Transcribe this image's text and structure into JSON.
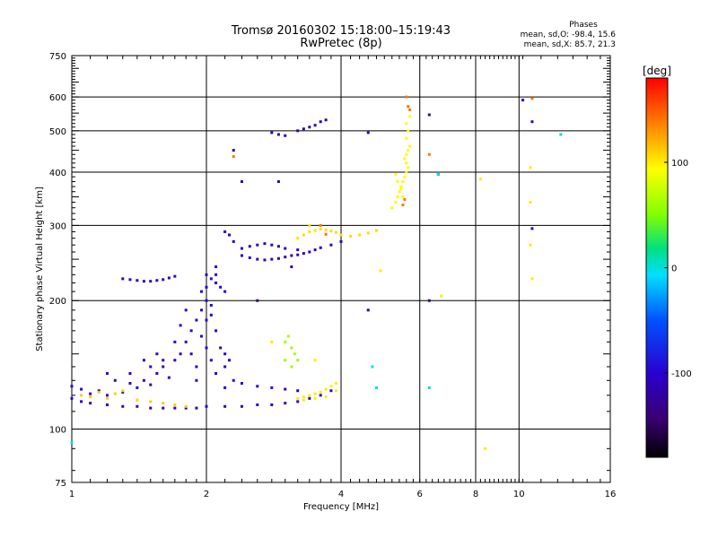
{
  "header": {
    "title": "Tromsø 20160302 15:18:00–15:19:43",
    "subtitle": "RwPretec (8p)"
  },
  "phase_info": {
    "title": "Phases",
    "line1": "mean, sd,O: -98.4, 15.6",
    "line2": "mean, sd,X:  85.7, 21.3"
  },
  "chart_data": {
    "type": "scatter",
    "title": "Tromsø 20160302 15:18:00–15:19:43",
    "subtitle": "RwPretec (8p)",
    "xlabel": "Frequency [MHz]",
    "ylabel": "Stationary phase Virtual Height [km]",
    "x_scale": "log",
    "y_scale": "log",
    "xlim": [
      1,
      16
    ],
    "ylim": [
      75,
      750
    ],
    "x_ticks": [
      1,
      2,
      4,
      6,
      8,
      10,
      16
    ],
    "y_ticks": [
      75,
      100,
      200,
      300,
      400,
      500,
      600,
      750
    ],
    "grid": true,
    "colorbar": {
      "label": "[deg]",
      "range": [
        -180,
        180
      ],
      "ticks": [
        100,
        0,
        -100
      ]
    },
    "series": [
      {
        "phase": -110,
        "points": [
          [
            1.0,
            118
          ],
          [
            1.05,
            116
          ],
          [
            1.1,
            115
          ],
          [
            1.2,
            114
          ],
          [
            1.3,
            113
          ],
          [
            1.4,
            113
          ],
          [
            1.5,
            112
          ],
          [
            1.6,
            112
          ],
          [
            1.7,
            112
          ],
          [
            1.8,
            112
          ],
          [
            1.9,
            112
          ],
          [
            2.0,
            113
          ],
          [
            2.2,
            113
          ],
          [
            2.4,
            113
          ],
          [
            2.6,
            114
          ],
          [
            2.8,
            114
          ],
          [
            3.0,
            115
          ],
          [
            3.2,
            116
          ],
          [
            3.4,
            118
          ],
          [
            3.6,
            120
          ],
          [
            3.8,
            123
          ]
        ]
      },
      {
        "phase": -100,
        "points": [
          [
            1.0,
            126
          ],
          [
            1.05,
            124
          ],
          [
            1.1,
            121
          ],
          [
            1.15,
            123
          ],
          [
            1.2,
            120
          ],
          [
            1.3,
            122
          ],
          [
            1.35,
            128
          ],
          [
            1.4,
            125
          ],
          [
            1.45,
            130
          ],
          [
            1.5,
            127
          ],
          [
            1.55,
            135
          ],
          [
            1.6,
            140
          ],
          [
            1.65,
            132
          ],
          [
            1.7,
            145
          ],
          [
            1.75,
            150
          ],
          [
            1.8,
            160
          ],
          [
            1.85,
            170
          ],
          [
            1.9,
            180
          ],
          [
            1.95,
            190
          ],
          [
            2.0,
            200
          ],
          [
            2.05,
            185
          ],
          [
            2.1,
            170
          ],
          [
            2.15,
            155
          ],
          [
            2.2,
            140
          ],
          [
            2.3,
            130
          ],
          [
            2.4,
            128
          ],
          [
            2.6,
            126
          ],
          [
            2.8,
            125
          ],
          [
            3.0,
            124
          ],
          [
            3.2,
            123
          ]
        ]
      },
      {
        "phase": -105,
        "points": [
          [
            1.7,
            160
          ],
          [
            1.75,
            175
          ],
          [
            1.8,
            190
          ],
          [
            1.85,
            150
          ],
          [
            1.9,
            140
          ],
          [
            1.95,
            165
          ],
          [
            2.0,
            155
          ],
          [
            2.05,
            145
          ],
          [
            2.1,
            135
          ],
          [
            2.0,
            180
          ],
          [
            1.95,
            210
          ],
          [
            2.05,
            195
          ],
          [
            2.1,
            220
          ],
          [
            2.0,
            230
          ],
          [
            2.1,
            240
          ],
          [
            2.2,
            150
          ],
          [
            2.25,
            145
          ],
          [
            1.6,
            145
          ],
          [
            1.55,
            150
          ],
          [
            1.5,
            140
          ],
          [
            1.45,
            145
          ],
          [
            1.35,
            135
          ],
          [
            1.25,
            130
          ],
          [
            1.2,
            135
          ],
          [
            1.9,
            130
          ],
          [
            2.2,
            125
          ]
        ]
      },
      {
        "phase": -110,
        "points": [
          [
            2.4,
            255
          ],
          [
            2.5,
            252
          ],
          [
            2.6,
            250
          ],
          [
            2.7,
            249
          ],
          [
            2.8,
            250
          ],
          [
            2.9,
            251
          ],
          [
            3.0,
            253
          ],
          [
            3.1,
            255
          ],
          [
            3.2,
            256
          ],
          [
            3.3,
            258
          ],
          [
            3.4,
            260
          ],
          [
            3.5,
            263
          ],
          [
            3.6,
            266
          ],
          [
            3.8,
            270
          ],
          [
            4.0,
            275
          ],
          [
            2.4,
            265
          ],
          [
            2.5,
            268
          ],
          [
            2.6,
            270
          ],
          [
            2.7,
            272
          ],
          [
            2.8,
            270
          ],
          [
            2.9,
            268
          ],
          [
            3.0,
            265
          ],
          [
            3.2,
            263
          ],
          [
            2.3,
            275
          ],
          [
            2.25,
            285
          ],
          [
            2.2,
            290
          ]
        ]
      },
      {
        "phase": -100,
        "points": [
          [
            1.3,
            225
          ],
          [
            1.35,
            224
          ],
          [
            1.4,
            223
          ],
          [
            1.45,
            222
          ],
          [
            1.5,
            222
          ],
          [
            1.55,
            223
          ],
          [
            1.6,
            224
          ],
          [
            1.65,
            226
          ],
          [
            1.7,
            228
          ],
          [
            2.1,
            220
          ],
          [
            2.15,
            215
          ],
          [
            2.2,
            210
          ],
          [
            2.05,
            225
          ],
          [
            2.1,
            230
          ],
          [
            2.0,
            215
          ]
        ]
      },
      {
        "phase": 110,
        "points": [
          [
            1.05,
            120
          ],
          [
            1.1,
            119
          ],
          [
            1.15,
            122
          ],
          [
            1.2,
            118
          ],
          [
            1.25,
            121
          ],
          [
            1.3,
            123
          ],
          [
            1.4,
            117
          ],
          [
            1.5,
            116
          ],
          [
            1.6,
            115
          ],
          [
            1.7,
            114
          ],
          [
            1.8,
            113
          ]
        ]
      },
      {
        "phase": 100,
        "points": [
          [
            3.2,
            118
          ],
          [
            3.3,
            119
          ],
          [
            3.4,
            120
          ],
          [
            3.5,
            121
          ],
          [
            3.6,
            122
          ],
          [
            3.7,
            124
          ],
          [
            3.8,
            126
          ],
          [
            3.9,
            128
          ],
          [
            3.3,
            117
          ],
          [
            3.5,
            118
          ],
          [
            3.7,
            119
          ],
          [
            3.9,
            123
          ]
        ]
      },
      {
        "phase": 105,
        "points": [
          [
            3.4,
            290
          ],
          [
            3.5,
            292
          ],
          [
            3.6,
            294
          ],
          [
            3.7,
            293
          ],
          [
            3.8,
            291
          ],
          [
            3.9,
            289
          ],
          [
            4.0,
            285
          ],
          [
            4.2,
            283
          ],
          [
            4.4,
            285
          ],
          [
            4.6,
            288
          ],
          [
            4.8,
            292
          ],
          [
            3.2,
            280
          ],
          [
            3.3,
            285
          ],
          [
            3.4,
            300
          ],
          [
            3.6,
            300
          ]
        ]
      },
      {
        "phase": 95,
        "points": [
          [
            5.2,
            330
          ],
          [
            5.3,
            340
          ],
          [
            5.35,
            350
          ],
          [
            5.4,
            360
          ],
          [
            5.45,
            370
          ],
          [
            5.5,
            380
          ],
          [
            5.55,
            390
          ],
          [
            5.6,
            400
          ],
          [
            5.65,
            410
          ],
          [
            5.6,
            420
          ],
          [
            5.55,
            430
          ],
          [
            5.6,
            440
          ],
          [
            5.65,
            450
          ],
          [
            5.7,
            460
          ],
          [
            5.6,
            480
          ],
          [
            5.65,
            500
          ],
          [
            5.6,
            520
          ],
          [
            5.7,
            540
          ],
          [
            5.5,
            350
          ],
          [
            5.45,
            365
          ],
          [
            5.35,
            380
          ],
          [
            5.3,
            395
          ]
        ]
      },
      {
        "phase": 140,
        "points": [
          [
            5.6,
            600
          ],
          [
            5.65,
            570
          ],
          [
            5.7,
            560
          ],
          [
            5.55,
            345
          ],
          [
            5.5,
            335
          ],
          [
            3.6,
            300
          ],
          [
            3.7,
            286
          ],
          [
            2.3,
            435
          ],
          [
            10.7,
            595
          ],
          [
            6.3,
            440
          ]
        ]
      },
      {
        "phase": 60,
        "points": [
          [
            3.0,
            160
          ],
          [
            3.1,
            155
          ],
          [
            3.05,
            165
          ],
          [
            3.15,
            150
          ],
          [
            3.2,
            145
          ],
          [
            3.0,
            145
          ],
          [
            3.1,
            140
          ]
        ]
      },
      {
        "phase": -110,
        "points": [
          [
            2.8,
            495
          ],
          [
            2.9,
            490
          ],
          [
            3.0,
            487
          ],
          [
            3.2,
            500
          ],
          [
            3.3,
            505
          ],
          [
            3.4,
            510
          ],
          [
            3.5,
            515
          ],
          [
            3.6,
            525
          ],
          [
            3.7,
            530
          ],
          [
            4.6,
            495
          ],
          [
            6.3,
            545
          ],
          [
            10.2,
            590
          ],
          [
            10.7,
            525
          ],
          [
            10.7,
            295
          ],
          [
            6.6,
            395
          ]
        ]
      },
      {
        "phase": 0,
        "points": [
          [
            12.4,
            490
          ],
          [
            6.6,
            395
          ],
          [
            4.7,
            140
          ],
          [
            4.8,
            125
          ],
          [
            6.3,
            125
          ],
          [
            1.0,
            93
          ]
        ]
      },
      {
        "phase": -130,
        "points": [
          [
            2.3,
            450
          ],
          [
            2.4,
            380
          ],
          [
            2.9,
            380
          ],
          [
            3.1,
            240
          ],
          [
            2.6,
            200
          ],
          [
            4.6,
            190
          ],
          [
            6.3,
            200
          ]
        ]
      },
      {
        "phase": 100,
        "points": [
          [
            10.7,
            225
          ],
          [
            10.6,
            270
          ],
          [
            10.6,
            410
          ],
          [
            10.6,
            340
          ],
          [
            8.2,
            385
          ],
          [
            8.4,
            90
          ],
          [
            4.9,
            235
          ],
          [
            2.8,
            160
          ],
          [
            3.5,
            145
          ],
          [
            6.7,
            205
          ]
        ]
      }
    ]
  }
}
